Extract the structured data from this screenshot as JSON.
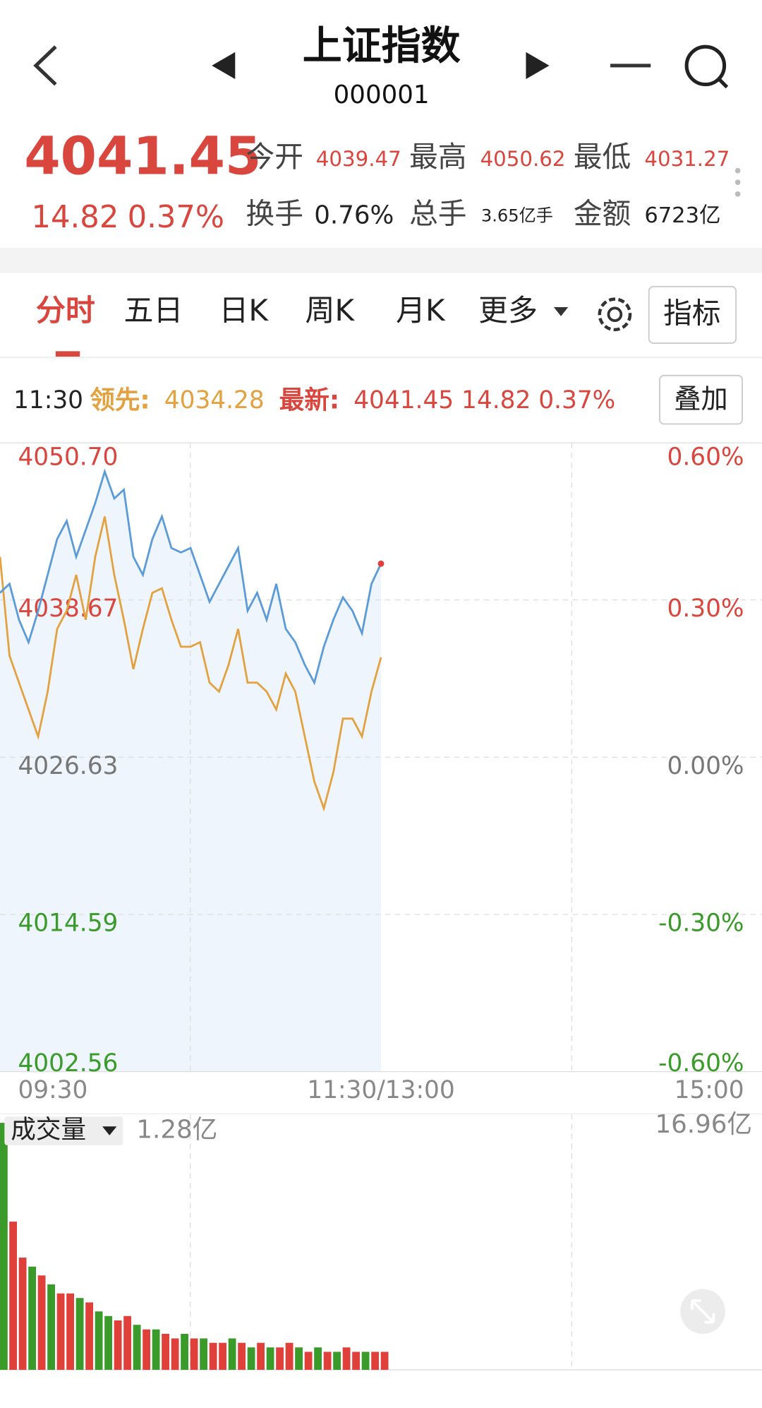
{
  "header": {
    "title": "上证指数",
    "code": "000001"
  },
  "quote": {
    "price": "4041.45",
    "change": "14.82",
    "percent": "0.37%",
    "fields": [
      {
        "label": "今开",
        "value": "4039.47"
      },
      {
        "label": "最高",
        "value": "4050.62"
      },
      {
        "label": "最低",
        "value": "4031.27"
      },
      {
        "label": "换手",
        "value": "0.76%"
      },
      {
        "label": "总手",
        "value": "3.65亿手"
      },
      {
        "label": "金额",
        "value": "6723亿"
      }
    ]
  },
  "tabs": [
    "分时",
    "五日",
    "日K",
    "周K",
    "月K",
    "更多"
  ],
  "indicator_button": "指标",
  "info": {
    "time": "11:30",
    "latest": "4041.45 14.82 0.37%"
  },
  "overlay_button": "叠加",
  "chart_data": [
    {
      "type": "line",
      "x": [
        0,
        3,
        6,
        9,
        12,
        15,
        18,
        21,
        24,
        27,
        30,
        33,
        36,
        39,
        42,
        45,
        48,
        51,
        54,
        57,
        60,
        63,
        66,
        69,
        72,
        75,
        78,
        81,
        84,
        87,
        90,
        93,
        96,
        99,
        102,
        105,
        108,
        111,
        114,
        117,
        120
      ],
      "series": [
        {
          "name": "领先:",
          "color": "#e3a23f",
          "values": [
            4041.97,
            4034.4,
            4032.34,
            4030.28,
            4028.21,
            4031.65,
            4036.46,
            4037.84,
            4040.59,
            4037.15,
            4041.97,
            4045.06,
            4040.59,
            4037.15,
            4033.37,
            4036.46,
            4039.22,
            4039.56,
            4037.15,
            4035.09,
            4035.09,
            4035.43,
            4032.34,
            4031.65,
            4033.71,
            4036.46,
            4032.34,
            4032.34,
            4031.65,
            4030.28,
            4033.03,
            4031.65,
            4028.21,
            4024.77,
            4022.71,
            4025.46,
            4029.59,
            4029.59,
            4028.21,
            4031.65,
            4034.28
          ]
        },
        {
          "name": "最新:",
          "color": "#5b9bd8",
          "values": [
            4039.22,
            4039.9,
            4037.15,
            4035.43,
            4037.84,
            4040.59,
            4043.34,
            4044.72,
            4041.97,
            4044.03,
            4046.09,
            4048.5,
            4046.44,
            4047.12,
            4041.97,
            4040.59,
            4043.34,
            4045.06,
            4042.65,
            4042.31,
            4042.65,
            4040.59,
            4038.53,
            4039.9,
            4041.28,
            4042.65,
            4037.84,
            4039.22,
            4037.15,
            4039.9,
            4036.46,
            4035.43,
            4033.71,
            4032.34,
            4035.09,
            4037.15,
            4038.87,
            4037.84,
            4036.12,
            4039.9,
            4041.45
          ]
        }
      ],
      "xlim": [
        0,
        240
      ],
      "xticks": [
        {
          "value": 0,
          "label": "09:30"
        },
        {
          "value": 120,
          "label": "11:30/13:00"
        },
        {
          "value": 240,
          "label": "15:00"
        }
      ],
      "ylim": [
        4002.56,
        4050.7
      ],
      "yticks": [
        {
          "value": 4050.7,
          "label": "4050.70"
        },
        4038.67,
        4026.63,
        4014.59,
        4002.56
      ],
      "y2lim": [
        -0.6,
        0.6
      ],
      "y2ticks": [
        {
          "value": 0.6,
          "label": "0.60%"
        },
        {
          "value": 0.3,
          "label": "0.30%"
        },
        {
          "value": 0,
          "label": "0.00%"
        },
        {
          "value": -0.3,
          "label": "-0.30%"
        },
        {
          "value": -0.6,
          "label": "-0.60%"
        }
      ],
      "grid": true
    },
    {
      "type": "bar",
      "title": "成交量",
      "annotation": "16.96亿",
      "x": [
        0,
        3,
        6,
        9,
        12,
        15,
        18,
        21,
        24,
        27,
        30,
        33,
        36,
        39,
        42,
        45,
        48,
        51,
        54,
        57,
        60,
        63,
        66,
        69,
        72,
        75,
        78,
        81,
        84,
        87,
        90,
        93,
        96,
        99,
        102,
        105,
        108,
        111,
        114,
        117,
        120
      ],
      "values": [
        1.235,
        0.741,
        0.561,
        0.516,
        0.472,
        0.427,
        0.382,
        0.382,
        0.359,
        0.337,
        0.292,
        0.269,
        0.247,
        0.269,
        0.225,
        0.202,
        0.202,
        0.18,
        0.157,
        0.18,
        0.157,
        0.157,
        0.135,
        0.135,
        0.157,
        0.135,
        0.112,
        0.135,
        0.112,
        0.112,
        0.135,
        0.112,
        0.09,
        0.112,
        0.09,
        0.09,
        0.112,
        0.09,
        0.09,
        0.09,
        0.09
      ],
      "colors": [
        "#3a9a2a",
        "#e0403a",
        "#e0403a",
        "#3a9a2a",
        "#e0403a",
        "#3a9a2a",
        "#e0403a",
        "#e0403a",
        "#3a9a2a",
        "#e0403a",
        "#3a9a2a",
        "#3a9a2a",
        "#e0403a",
        "#e0403a",
        "#3a9a2a",
        "#e0403a",
        "#3a9a2a",
        "#e0403a",
        "#e0403a",
        "#3a9a2a",
        "#e0403a",
        "#3a9a2a",
        "#e0403a",
        "#e0403a",
        "#3a9a2a",
        "#e0403a",
        "#3a9a2a",
        "#e0403a",
        "#3a9a2a",
        "#e0403a",
        "#e0403a",
        "#3a9a2a",
        "#e0403a",
        "#3a9a2a",
        "#e0403a",
        "#3a9a2a",
        "#e0403a",
        "#e0403a",
        "#3a9a2a",
        "#e0403a",
        "#e0403a"
      ],
      "xlim": [
        0,
        240
      ],
      "ylim": [
        0,
        1.28
      ],
      "yticks": [
        {
          "value": 1.28,
          "label": "1.28亿"
        }
      ]
    }
  ]
}
